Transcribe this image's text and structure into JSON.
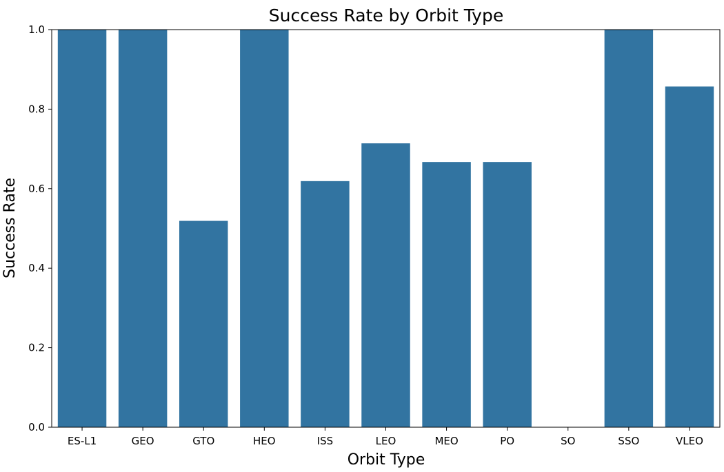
{
  "chart_data": {
    "type": "bar",
    "title": "Success Rate by Orbit Type",
    "xlabel": "Orbit Type",
    "ylabel": "Success Rate",
    "categories": [
      "ES-L1",
      "GEO",
      "GTO",
      "HEO",
      "ISS",
      "LEO",
      "MEO",
      "PO",
      "SO",
      "SSO",
      "VLEO"
    ],
    "values": [
      1.0,
      1.0,
      0.519,
      1.0,
      0.619,
      0.714,
      0.667,
      0.667,
      0.0,
      1.0,
      0.857
    ],
    "ylim": [
      0,
      1.0
    ],
    "yticks": [
      "0.0",
      "0.2",
      "0.4",
      "0.6",
      "0.8",
      "1.0"
    ],
    "bar_color": "#3274a1",
    "grid": false,
    "legend": false
  }
}
